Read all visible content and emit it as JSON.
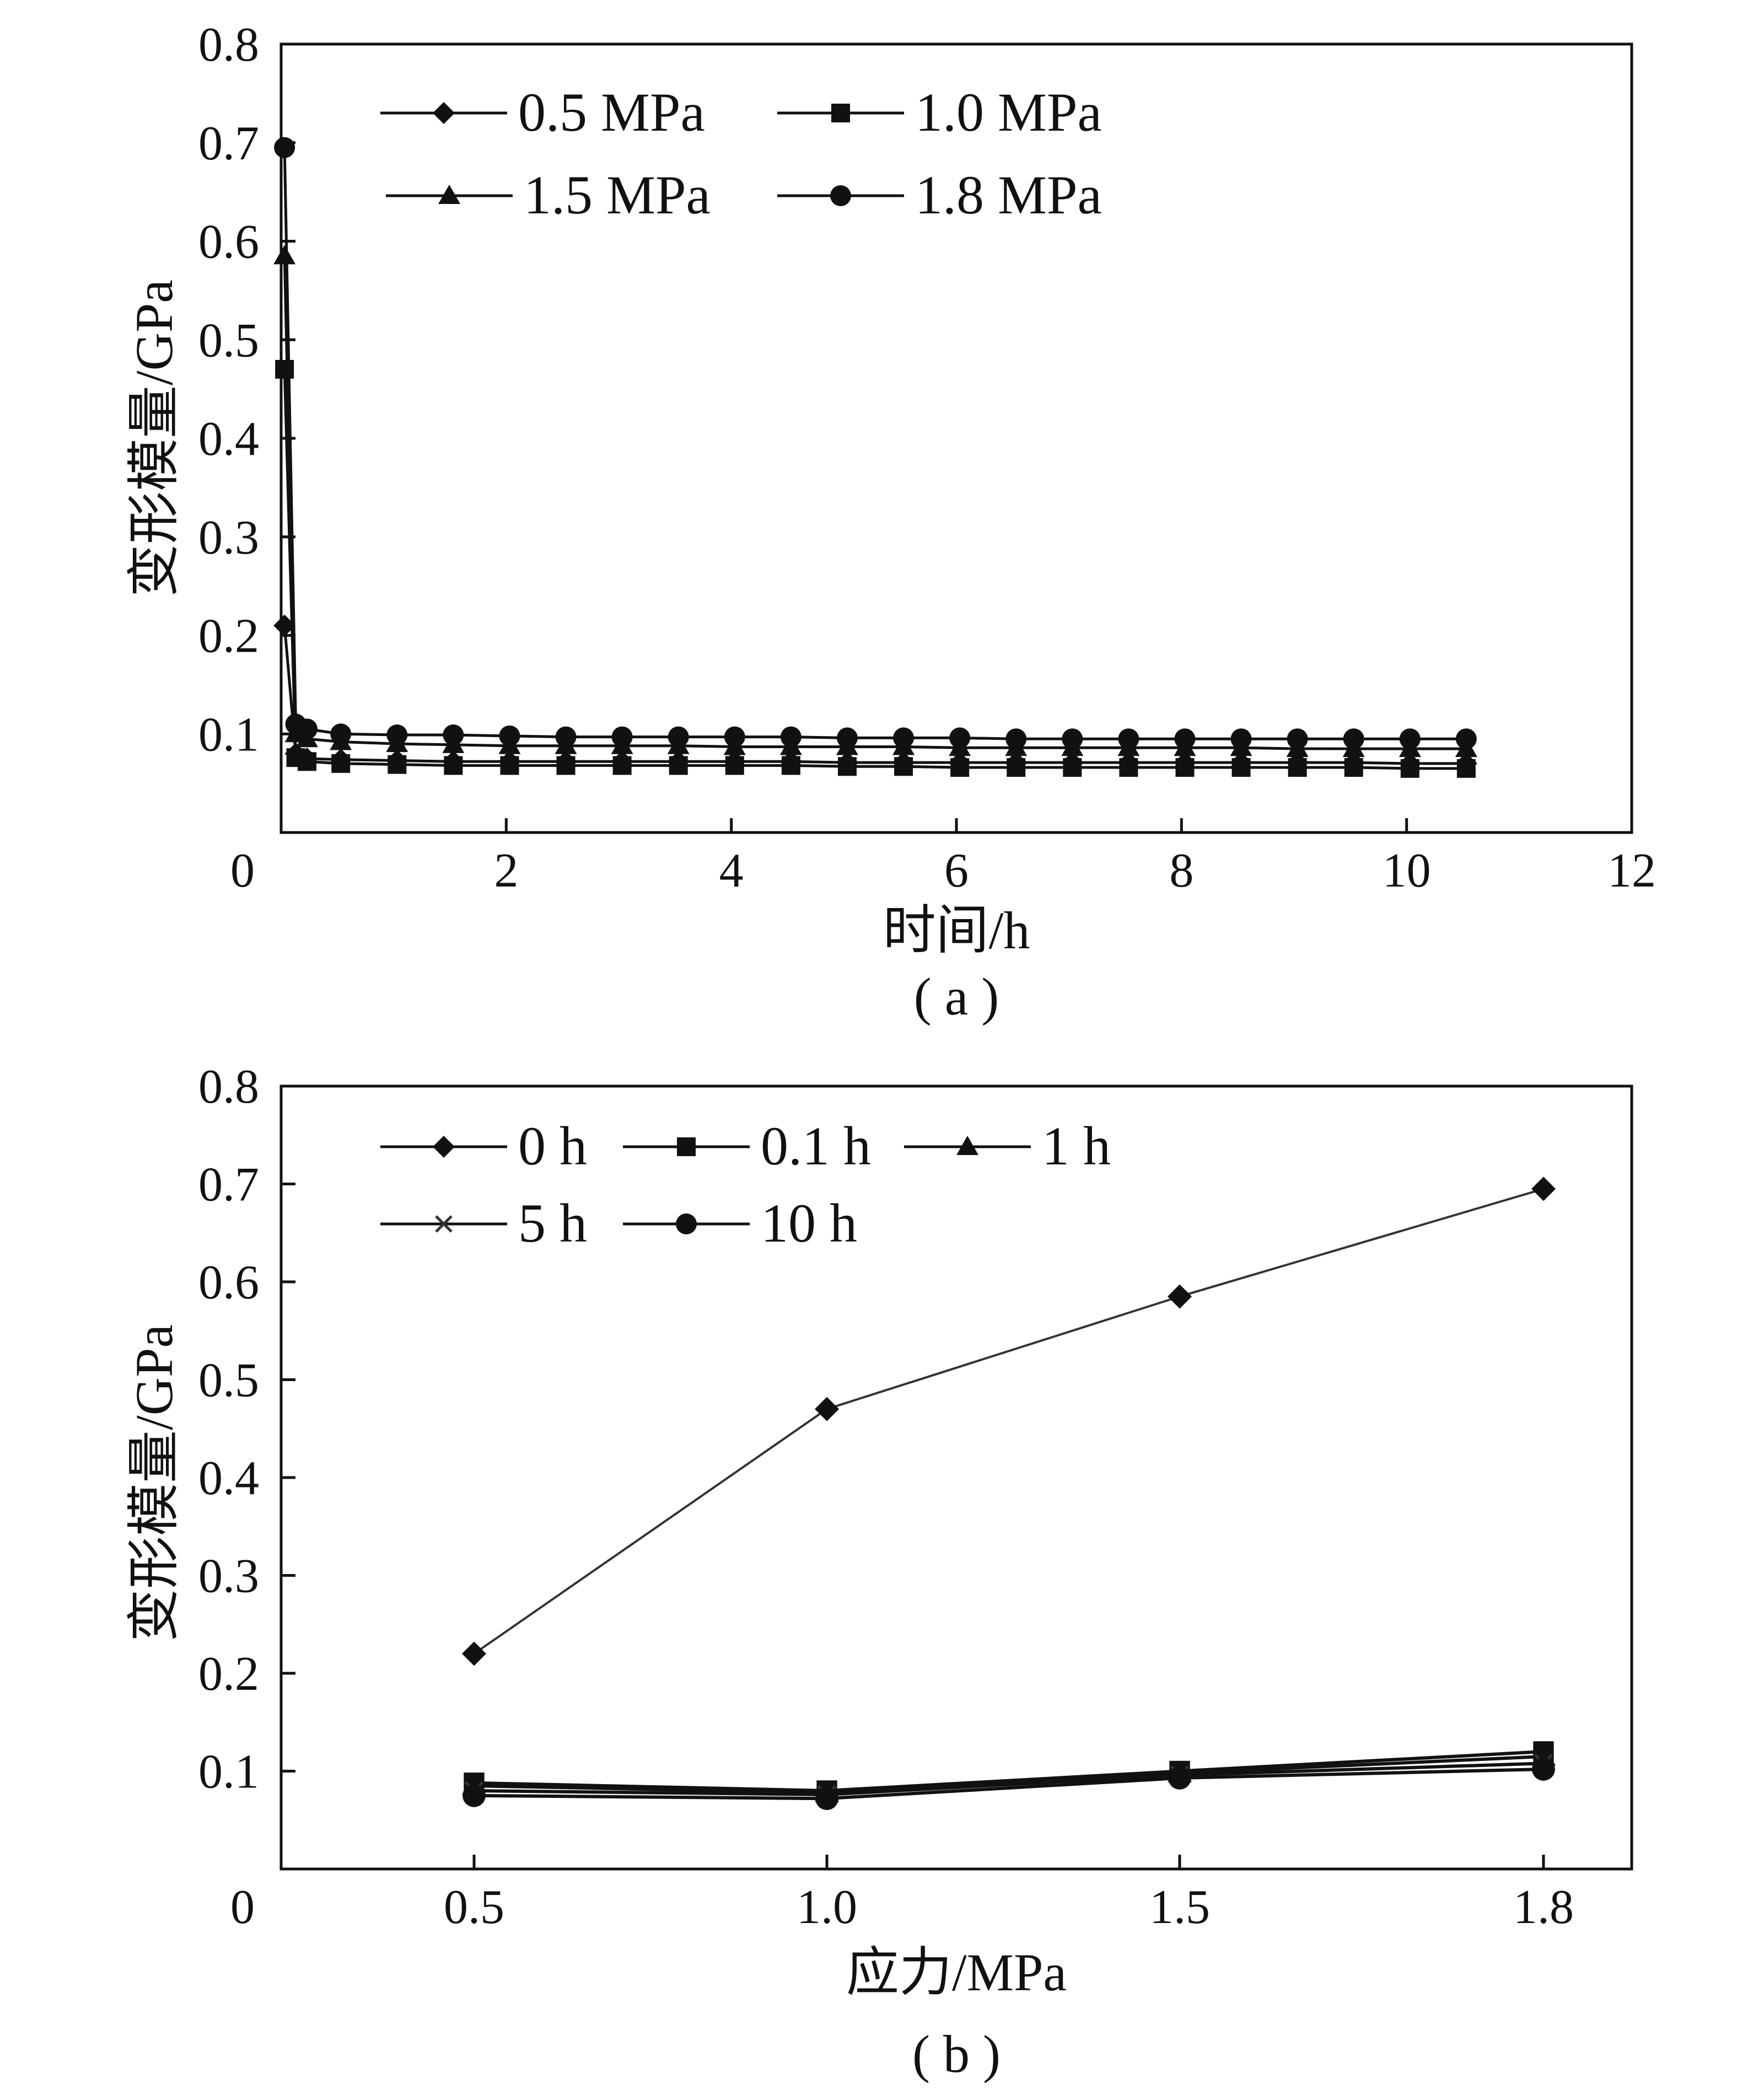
{
  "chart_data": [
    {
      "type": "line",
      "caption": "( a )",
      "xlabel": "时间/h",
      "ylabel": "变形模量/GPa",
      "xlim": [
        0,
        12
      ],
      "ylim": [
        0,
        0.8
      ],
      "xticks": [
        "0",
        "2",
        "4",
        "6",
        "8",
        "10",
        "12"
      ],
      "yticks": [
        "0.1",
        "0.2",
        "0.3",
        "0.4",
        "0.5",
        "0.6",
        "0.7",
        "0.8"
      ],
      "legend": "top-left, two columns",
      "series": [
        {
          "name": "0.5 MPa",
          "marker": "diamond",
          "x": [
            0,
            0.1,
            0.2,
            0.5,
            1.0,
            1.5,
            2.0,
            2.5,
            3.0,
            3.5,
            4.0,
            4.5,
            5.0,
            5.5,
            6.0,
            6.5,
            7.0,
            7.5,
            8.0,
            8.5,
            9.0,
            9.5,
            10.0,
            10.5
          ],
          "y": [
            0.21,
            0.08,
            0.075,
            0.074,
            0.073,
            0.072,
            0.072,
            0.072,
            0.072,
            0.072,
            0.072,
            0.072,
            0.071,
            0.071,
            0.071,
            0.071,
            0.071,
            0.071,
            0.071,
            0.071,
            0.071,
            0.071,
            0.07,
            0.07
          ]
        },
        {
          "name": "1.0 MPa",
          "marker": "square",
          "x": [
            0,
            0.1,
            0.2,
            0.5,
            1.0,
            1.5,
            2.0,
            2.5,
            3.0,
            3.5,
            4.0,
            4.5,
            5.0,
            5.5,
            6.0,
            6.5,
            7.0,
            7.5,
            8.0,
            8.5,
            9.0,
            9.5,
            10.0,
            10.5
          ],
          "y": [
            0.47,
            0.076,
            0.072,
            0.07,
            0.069,
            0.068,
            0.068,
            0.068,
            0.068,
            0.068,
            0.068,
            0.068,
            0.067,
            0.067,
            0.066,
            0.066,
            0.066,
            0.066,
            0.066,
            0.066,
            0.066,
            0.066,
            0.065,
            0.065
          ]
        },
        {
          "name": "1.5 MPa",
          "marker": "triangle",
          "x": [
            0,
            0.1,
            0.2,
            0.5,
            1.0,
            1.5,
            2.0,
            2.5,
            3.0,
            3.5,
            4.0,
            4.5,
            5.0,
            5.5,
            6.0,
            6.5,
            7.0,
            7.5,
            8.0,
            8.5,
            9.0,
            9.5,
            10.0,
            10.5
          ],
          "y": [
            0.585,
            0.1,
            0.095,
            0.092,
            0.09,
            0.089,
            0.088,
            0.088,
            0.088,
            0.088,
            0.087,
            0.087,
            0.087,
            0.087,
            0.086,
            0.086,
            0.086,
            0.086,
            0.086,
            0.086,
            0.085,
            0.085,
            0.085,
            0.085
          ]
        },
        {
          "name": "1.8 MPa",
          "marker": "circle",
          "x": [
            0,
            0.1,
            0.2,
            0.5,
            1.0,
            1.5,
            2.0,
            2.5,
            3.0,
            3.5,
            4.0,
            4.5,
            5.0,
            5.5,
            6.0,
            6.5,
            7.0,
            7.5,
            8.0,
            8.5,
            9.0,
            9.5,
            10.0,
            10.5
          ],
          "y": [
            0.695,
            0.11,
            0.105,
            0.1,
            0.099,
            0.099,
            0.098,
            0.097,
            0.097,
            0.097,
            0.097,
            0.097,
            0.096,
            0.096,
            0.096,
            0.095,
            0.095,
            0.095,
            0.095,
            0.095,
            0.095,
            0.095,
            0.095,
            0.095
          ]
        }
      ]
    },
    {
      "type": "line",
      "caption": "( b )",
      "xlabel": "应力/MPa",
      "ylabel": "变形模量/GPa",
      "categories": [
        "0.5",
        "1.0",
        "1.5",
        "1.8"
      ],
      "x": [
        0.5,
        1.0,
        1.5,
        1.8
      ],
      "x_ticks": [
        "0",
        "0.5",
        "1.0",
        "1.5",
        "1.8"
      ],
      "ylim": [
        0,
        0.8
      ],
      "yticks": [
        "0.1",
        "0.2",
        "0.3",
        "0.4",
        "0.5",
        "0.6",
        "0.7",
        "0.8"
      ],
      "legend": "top-left, three columns",
      "series": [
        {
          "name": "0 h",
          "marker": "diamond",
          "values": [
            0.22,
            0.47,
            0.585,
            0.695
          ]
        },
        {
          "name": "0.1 h",
          "marker": "square",
          "values": [
            0.088,
            0.08,
            0.1,
            0.12
          ]
        },
        {
          "name": "1 h",
          "marker": "triangle",
          "values": [
            0.085,
            0.078,
            0.098,
            0.115
          ]
        },
        {
          "name": "5 h",
          "marker": "cross",
          "values": [
            0.08,
            0.076,
            0.096,
            0.108
          ]
        },
        {
          "name": "10 h",
          "marker": "circle",
          "values": [
            0.075,
            0.072,
            0.093,
            0.102
          ]
        }
      ]
    }
  ]
}
